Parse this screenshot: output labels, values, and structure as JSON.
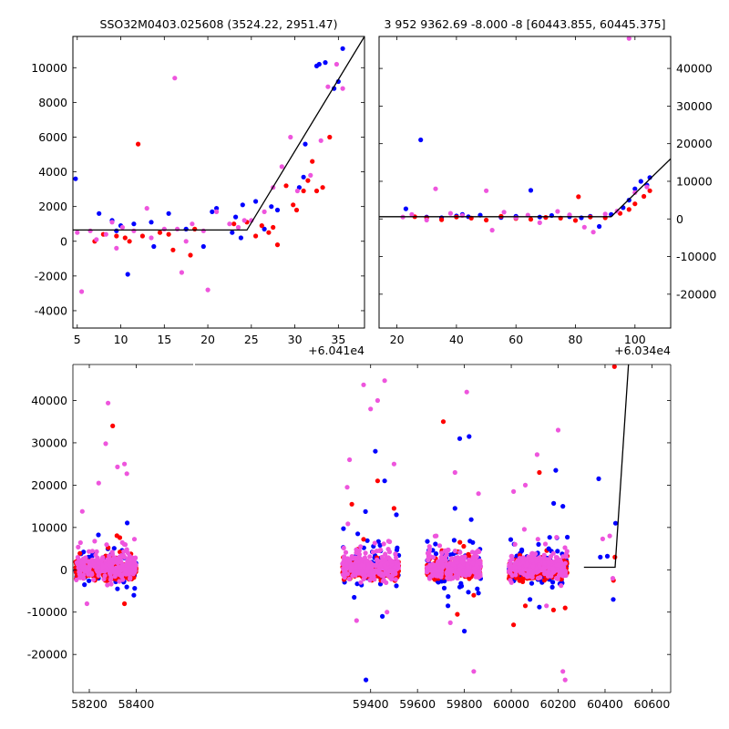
{
  "colors": {
    "blue": "#0000ff",
    "red": "#ff0000",
    "pink": "#ee55dd",
    "line": "#000000"
  },
  "chart_data": [
    {
      "type": "scatter",
      "title": "SSO32M0403.025608 (3524.22, 2951.47)",
      "xlabel": "",
      "ylabel": "",
      "x_offset_label": "+6.041e4",
      "xlim": [
        4.5,
        38.0
      ],
      "ylim": [
        -5000,
        11800
      ],
      "xticks": [
        5,
        10,
        15,
        20,
        25,
        30,
        35
      ],
      "yticks": [
        -4000,
        -2000,
        0,
        2000,
        4000,
        6000,
        8000,
        10000
      ],
      "ytick_side": "left",
      "fit_line": {
        "x": [
          4.5,
          24.5,
          38.0
        ],
        "y": [
          650,
          650,
          11800
        ]
      },
      "series": [
        {
          "color": "blue",
          "points": [
            [
              4.8,
              3600
            ],
            [
              7.5,
              1600
            ],
            [
              9.0,
              1200
            ],
            [
              9.5,
              600
            ],
            [
              10.0,
              900
            ],
            [
              10.8,
              -1900
            ],
            [
              11.5,
              1000
            ],
            [
              13.5,
              1100
            ],
            [
              13.8,
              -300
            ],
            [
              15.5,
              1600
            ],
            [
              17.5,
              700
            ],
            [
              19.5,
              -300
            ],
            [
              20.5,
              1700
            ],
            [
              21.0,
              1900
            ],
            [
              22.8,
              500
            ],
            [
              23.2,
              1400
            ],
            [
              23.8,
              200
            ],
            [
              24.0,
              2100
            ],
            [
              25.5,
              2300
            ],
            [
              26.5,
              700
            ],
            [
              27.3,
              2000
            ],
            [
              28.0,
              1800
            ],
            [
              30.5,
              3100
            ],
            [
              31.0,
              3700
            ],
            [
              31.2,
              5600
            ],
            [
              32.5,
              10100
            ],
            [
              32.8,
              10200
            ],
            [
              33.5,
              10300
            ],
            [
              34.5,
              8800
            ],
            [
              35.0,
              9200
            ],
            [
              35.5,
              11100
            ]
          ]
        },
        {
          "color": "red",
          "points": [
            [
              7.0,
              0
            ],
            [
              8.0,
              400
            ],
            [
              9.5,
              300
            ],
            [
              10.5,
              200
            ],
            [
              11.0,
              0
            ],
            [
              12.0,
              5600
            ],
            [
              12.5,
              300
            ],
            [
              14.5,
              500
            ],
            [
              15.5,
              400
            ],
            [
              16.0,
              -500
            ],
            [
              18.0,
              -800
            ],
            [
              18.5,
              700
            ],
            [
              23.0,
              1000
            ],
            [
              24.5,
              1100
            ],
            [
              25.5,
              300
            ],
            [
              26.2,
              900
            ],
            [
              27.0,
              500
            ],
            [
              27.5,
              800
            ],
            [
              28.0,
              -200
            ],
            [
              29.0,
              3200
            ],
            [
              29.8,
              2100
            ],
            [
              30.2,
              1800
            ],
            [
              31.0,
              2900
            ],
            [
              31.5,
              3500
            ],
            [
              32.0,
              4600
            ],
            [
              32.5,
              2900
            ],
            [
              33.2,
              3100
            ],
            [
              34.0,
              6000
            ]
          ]
        },
        {
          "color": "pink",
          "points": [
            [
              5.0,
              500
            ],
            [
              5.5,
              -2900
            ],
            [
              6.5,
              600
            ],
            [
              7.2,
              100
            ],
            [
              8.3,
              400
            ],
            [
              9.0,
              1100
            ],
            [
              9.5,
              -400
            ],
            [
              10.2,
              800
            ],
            [
              11.5,
              600
            ],
            [
              13.0,
              1900
            ],
            [
              13.5,
              200
            ],
            [
              15.0,
              700
            ],
            [
              16.2,
              9400
            ],
            [
              16.5,
              700
            ],
            [
              17.0,
              -1800
            ],
            [
              17.5,
              0
            ],
            [
              18.2,
              1000
            ],
            [
              19.5,
              600
            ],
            [
              20.0,
              -2800
            ],
            [
              21.0,
              1700
            ],
            [
              22.5,
              1000
            ],
            [
              23.5,
              800
            ],
            [
              24.2,
              1200
            ],
            [
              25.0,
              1200
            ],
            [
              26.5,
              1700
            ],
            [
              27.5,
              3100
            ],
            [
              28.5,
              4300
            ],
            [
              29.5,
              6000
            ],
            [
              30.3,
              2900
            ],
            [
              31.8,
              3800
            ],
            [
              33.0,
              5800
            ],
            [
              33.8,
              8900
            ],
            [
              34.8,
              10200
            ],
            [
              35.5,
              8800
            ]
          ]
        }
      ]
    },
    {
      "type": "scatter",
      "title": "3 952 9362.69 -8.000 -8 [60443.855, 60445.375]",
      "xlabel": "",
      "ylabel": "",
      "x_offset_label": "+6.034e4",
      "xlim": [
        14,
        112
      ],
      "ylim": [
        -29000,
        48500
      ],
      "xticks": [
        20,
        40,
        60,
        80,
        100
      ],
      "yticks": [
        -20000,
        -10000,
        0,
        10000,
        20000,
        30000,
        40000
      ],
      "ytick_side": "right",
      "fit_line": {
        "x": [
          14,
          92,
          112
        ],
        "y": [
          600,
          600,
          16000
        ]
      },
      "series": [
        {
          "color": "blue",
          "points": [
            [
              23,
              2700
            ],
            [
              28,
              21000
            ],
            [
              30,
              500
            ],
            [
              35,
              300
            ],
            [
              40,
              800
            ],
            [
              42,
              1200
            ],
            [
              44,
              600
            ],
            [
              48,
              1000
            ],
            [
              55,
              400
            ],
            [
              60,
              700
            ],
            [
              65,
              7600
            ],
            [
              68,
              500
            ],
            [
              72,
              900
            ],
            [
              78,
              600
            ],
            [
              82,
              300
            ],
            [
              85,
              700
            ],
            [
              88,
              -2000
            ],
            [
              92,
              1200
            ],
            [
              96,
              3000
            ],
            [
              98,
              5000
            ],
            [
              100,
              8000
            ],
            [
              102,
              10000
            ],
            [
              104,
              9000
            ],
            [
              105,
              11000
            ]
          ]
        },
        {
          "color": "red",
          "points": [
            [
              26,
              600
            ],
            [
              30,
              300
            ],
            [
              35,
              -200
            ],
            [
              40,
              500
            ],
            [
              45,
              200
            ],
            [
              50,
              -300
            ],
            [
              55,
              700
            ],
            [
              60,
              100
            ],
            [
              65,
              -100
            ],
            [
              70,
              400
            ],
            [
              75,
              200
            ],
            [
              80,
              -400
            ],
            [
              85,
              500
            ],
            [
              90,
              300
            ],
            [
              95,
              1500
            ],
            [
              98,
              2500
            ],
            [
              100,
              4000
            ],
            [
              103,
              6000
            ],
            [
              105,
              7500
            ],
            [
              81,
              5900
            ]
          ]
        },
        {
          "color": "pink",
          "points": [
            [
              22,
              500
            ],
            [
              25,
              1200
            ],
            [
              30,
              -300
            ],
            [
              33,
              8000
            ],
            [
              38,
              1500
            ],
            [
              42,
              900
            ],
            [
              50,
              7500
            ],
            [
              52,
              -3000
            ],
            [
              56,
              1800
            ],
            [
              60,
              300
            ],
            [
              64,
              1000
            ],
            [
              68,
              -1000
            ],
            [
              74,
              2000
            ],
            [
              78,
              1100
            ],
            [
              83,
              -2200
            ],
            [
              86,
              -3500
            ],
            [
              90,
              1300
            ],
            [
              94,
              2100
            ],
            [
              98,
              48000
            ],
            [
              100,
              7000
            ],
            [
              104,
              8500
            ]
          ]
        }
      ]
    },
    {
      "type": "scatter",
      "title": "",
      "xlabel": "",
      "ylabel": "",
      "xlim": [
        58130,
        60680
      ],
      "ylim": [
        -29000,
        48500
      ],
      "xticks": [
        58200,
        58400,
        59400,
        59600,
        59800,
        60000,
        60200,
        60400,
        60600
      ],
      "yticks": [
        -20000,
        -10000,
        0,
        10000,
        20000,
        30000,
        40000
      ],
      "ytick_side": "left",
      "gap_range": [
        58430,
        59230
      ],
      "fit_line": {
        "x": [
          60310,
          60443,
          60500
        ],
        "y": [
          600,
          600,
          48500
        ]
      },
      "clusters": [
        {
          "x_range": [
            58140,
            58400
          ]
        },
        {
          "x_range": [
            59280,
            59520
          ]
        },
        {
          "x_range": [
            59640,
            59870
          ]
        },
        {
          "x_range": [
            59990,
            60240
          ]
        }
      ],
      "outliers": {
        "blue": [
          [
            58320,
            -4500
          ],
          [
            58390,
            -6000
          ],
          [
            59330,
            -6500
          ],
          [
            59380,
            -26000
          ],
          [
            59420,
            28000
          ],
          [
            59450,
            -11000
          ],
          [
            59460,
            21000
          ],
          [
            59510,
            13000
          ],
          [
            59730,
            -8500
          ],
          [
            59760,
            14500
          ],
          [
            59780,
            31000
          ],
          [
            59800,
            -14500
          ],
          [
            59820,
            31500
          ],
          [
            59860,
            -5500
          ],
          [
            60080,
            -7000
          ],
          [
            60120,
            -8800
          ],
          [
            60160,
            5000
          ],
          [
            60190,
            23500
          ],
          [
            60220,
            15000
          ],
          [
            60373,
            21500
          ],
          [
            60380,
            3000
          ],
          [
            60410,
            3200
          ],
          [
            60435,
            -7000
          ],
          [
            60445,
            11000
          ]
        ],
        "red": [
          [
            58300,
            34000
          ],
          [
            58350,
            -8000
          ],
          [
            59320,
            15500
          ],
          [
            59370,
            7200
          ],
          [
            59430,
            21000
          ],
          [
            59500,
            14500
          ],
          [
            59710,
            35000
          ],
          [
            59770,
            -10500
          ],
          [
            59840,
            -6000
          ],
          [
            60010,
            -13000
          ],
          [
            60060,
            -8500
          ],
          [
            60120,
            23000
          ],
          [
            60180,
            -9500
          ],
          [
            60230,
            -9000
          ],
          [
            60440,
            48000
          ],
          [
            60442,
            3000
          ],
          [
            60436,
            -2500
          ]
        ],
        "pink": [
          [
            58170,
            13800
          ],
          [
            58190,
            -8000
          ],
          [
            58240,
            20500
          ],
          [
            58270,
            29800
          ],
          [
            58280,
            39400
          ],
          [
            58320,
            24300
          ],
          [
            58350,
            25000
          ],
          [
            58360,
            22700
          ],
          [
            59300,
            19500
          ],
          [
            59310,
            26000
          ],
          [
            59340,
            -12000
          ],
          [
            59370,
            43700
          ],
          [
            59400,
            38000
          ],
          [
            59430,
            40000
          ],
          [
            59460,
            44700
          ],
          [
            59470,
            -10000
          ],
          [
            59500,
            25000
          ],
          [
            59680,
            8000
          ],
          [
            59740,
            -12500
          ],
          [
            59760,
            23000
          ],
          [
            59810,
            42000
          ],
          [
            59840,
            -24000
          ],
          [
            59860,
            18000
          ],
          [
            60010,
            18500
          ],
          [
            60060,
            20000
          ],
          [
            60110,
            27200
          ],
          [
            60150,
            -8500
          ],
          [
            60200,
            33000
          ],
          [
            60220,
            -24000
          ],
          [
            60230,
            -26000
          ],
          [
            60390,
            7300
          ],
          [
            60420,
            8000
          ],
          [
            60433,
            -2000
          ]
        ]
      }
    }
  ]
}
